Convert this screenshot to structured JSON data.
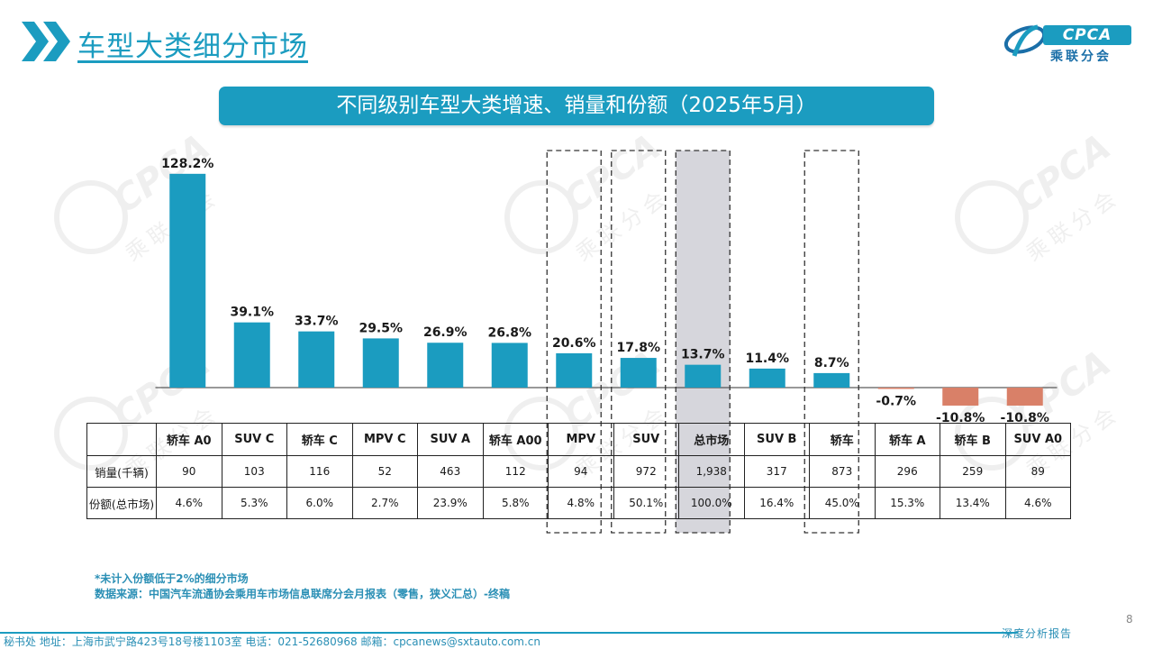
{
  "header": {
    "title": "车型大类细分市场",
    "logo_text": "CPCA",
    "logo_sub": "乘联分会"
  },
  "banner": "不同级别车型大类增速、销量和份额（2025年5月）",
  "chart_data": {
    "type": "bar",
    "categories": [
      "轿车 A0",
      "SUV C",
      "轿车 C",
      "MPV C",
      "SUV A",
      "轿车 A00",
      "MPV",
      "SUV",
      "总市场",
      "SUV B",
      "轿车",
      "轿车 A",
      "轿车 B",
      "SUV A0"
    ],
    "values": [
      128.2,
      39.1,
      33.7,
      29.5,
      26.9,
      26.8,
      20.6,
      17.8,
      13.7,
      11.4,
      8.7,
      -0.7,
      -10.8,
      -10.8
    ],
    "labels": [
      "128.2%",
      "39.1%",
      "33.7%",
      "29.5%",
      "26.9%",
      "26.8%",
      "20.6%",
      "17.8%",
      "13.7%",
      "11.4%",
      "8.7%",
      "-0.7%",
      "-10.8%",
      "-10.8%"
    ],
    "positive_color": "#1b9cc0",
    "negative_color": "#d98068",
    "highlight_dashed": [
      "MPV",
      "SUV",
      "轿车"
    ],
    "highlight_filled": [
      "总市场"
    ],
    "highlight_fill_color": "#d6d6dc",
    "title": "",
    "xlabel": "",
    "ylabel": ""
  },
  "table": {
    "row_labels": [
      "销量(千辆)",
      "份额(总市场)"
    ],
    "sales": [
      "90",
      "103",
      "116",
      "52",
      "463",
      "112",
      "94",
      "972",
      "1,938",
      "317",
      "873",
      "296",
      "259",
      "89"
    ],
    "share": [
      "4.6%",
      "5.3%",
      "6.0%",
      "2.7%",
      "23.9%",
      "5.8%",
      "4.8%",
      "50.1%",
      "100.0%",
      "16.4%",
      "45.0%",
      "15.3%",
      "13.4%",
      "4.6%"
    ]
  },
  "notes": {
    "line1": "*未计入份额低于2%的细分市场",
    "line2": "数据来源：中国汽车流通协会乘用车市场信息联席分会月报表（零售，狭义汇总）-终稿"
  },
  "page_number": "8",
  "footer": {
    "text": "秘书处   地址：上海市武宁路423号18号楼1103室   电话：021-52680968   邮箱：cpcanews@sxtauto.com.cn",
    "tag": "深度分析报告"
  }
}
